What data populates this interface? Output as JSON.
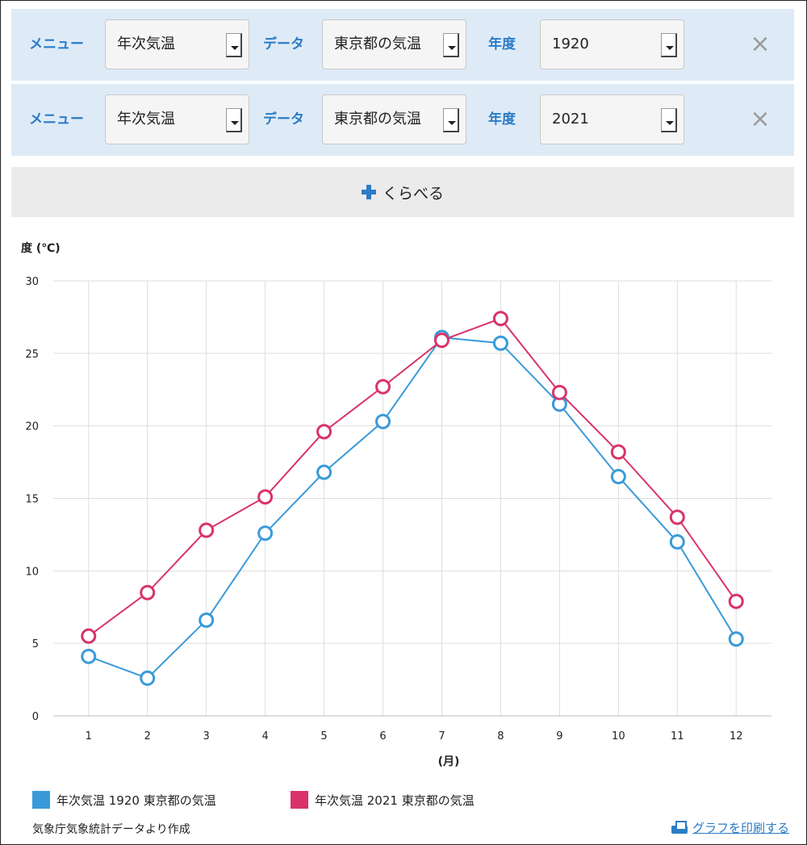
{
  "rows": [
    {
      "menu_label": "メニュー",
      "menu_value": "年次気温",
      "data_label": "データ",
      "data_value": "東京都の気温",
      "year_label": "年度",
      "year_value": "1920",
      "close": "×"
    },
    {
      "menu_label": "メニュー",
      "menu_value": "年次気温",
      "data_label": "データ",
      "data_value": "東京都の気温",
      "year_label": "年度",
      "year_value": "2021",
      "close": "×"
    }
  ],
  "compare_button": {
    "label": "くらべる",
    "icon": "plus-icon"
  },
  "chart_data": {
    "type": "line",
    "ylabel": "度 (℃)",
    "xlabel": "(月)",
    "x": [
      1,
      2,
      3,
      4,
      5,
      6,
      7,
      8,
      9,
      10,
      11,
      12
    ],
    "ylim": [
      0,
      30
    ],
    "yticks": [
      0,
      5,
      10,
      15,
      20,
      25,
      30
    ],
    "grid": true,
    "legend_position": "bottom",
    "series": [
      {
        "name": "年次気温 1920 東京都の気温",
        "color": "#3a9ad9",
        "values": [
          4.1,
          2.6,
          6.6,
          12.6,
          16.8,
          20.3,
          26.1,
          25.7,
          21.5,
          16.5,
          12.0,
          5.3
        ]
      },
      {
        "name": "年次気温 2021 東京都の気温",
        "color": "#d9336a",
        "values": [
          5.5,
          8.5,
          12.8,
          15.1,
          19.6,
          22.7,
          25.9,
          27.4,
          22.3,
          18.2,
          13.7,
          7.9
        ]
      }
    ]
  },
  "footer": {
    "source": "気象庁気象統計データより作成",
    "print_label": "グラフを印刷する",
    "print_icon": "printer-icon"
  }
}
